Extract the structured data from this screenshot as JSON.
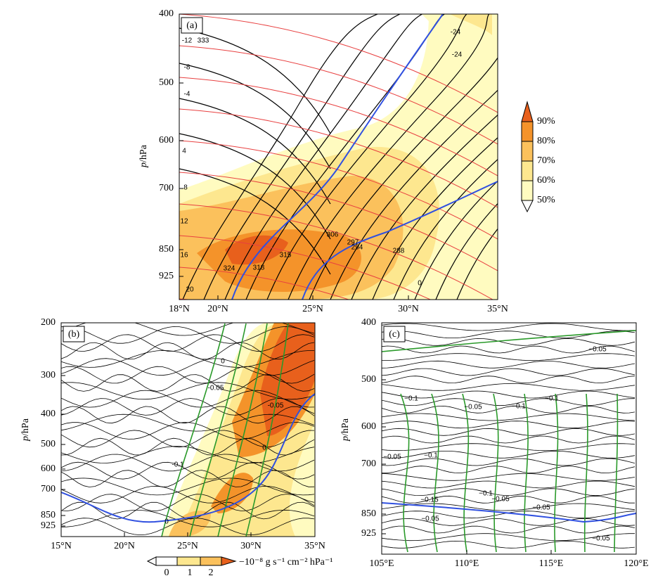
{
  "panels": [
    {
      "label": "(a)",
      "y_axis_label": {
        "italic": "p",
        "rest": "/hPa"
      },
      "yticks": [
        "400",
        "500",
        "600",
        "700",
        "850",
        "925"
      ],
      "xticks": [
        "18°N",
        "20°N",
        "25°N",
        "30°N",
        "35°N"
      ],
      "contour_labels": [
        "333",
        "324",
        "318",
        "315",
        "306",
        "297",
        "294",
        "288",
        "-12",
        "-8",
        "-4",
        "4",
        "8",
        "12",
        "16",
        "20",
        "0",
        "-24",
        "-24"
      ]
    },
    {
      "label": "(b)",
      "y_axis_label": {
        "italic": "p",
        "rest": "/hPa"
      },
      "yticks": [
        "200",
        "300",
        "400",
        "500",
        "600",
        "700",
        "850",
        "925"
      ],
      "xticks": [
        "15°N",
        "20°N",
        "25°N",
        "30°N",
        "35°N"
      ],
      "contour_labels": [
        "0",
        "-0.05",
        "-0.05",
        "0",
        "-0.1",
        "0"
      ]
    },
    {
      "label": "(c)",
      "y_axis_label": {
        "italic": "p",
        "rest": "/hPa"
      },
      "yticks": [
        "400",
        "500",
        "600",
        "700",
        "850",
        "925"
      ],
      "xticks": [
        "105°E",
        "110°E",
        "115°E",
        "120°E"
      ],
      "contour_labels": [
        "−0.05",
        "−0.05",
        "−0.1",
        "−0.1",
        "−0.1",
        "−0.05",
        "−0.1",
        "−0.1",
        "−0.05",
        "−0.15",
        "−0.05",
        "−0.05",
        "−0.05"
      ]
    }
  ],
  "colorbar_a": [
    "50%",
    "60%",
    "70%",
    "80%",
    "90%"
  ],
  "colorbar_b": {
    "ticks": [
      "0",
      "1",
      "2"
    ],
    "unit": "−10⁻⁸ g s⁻¹ cm⁻² hPa⁻¹"
  }
}
